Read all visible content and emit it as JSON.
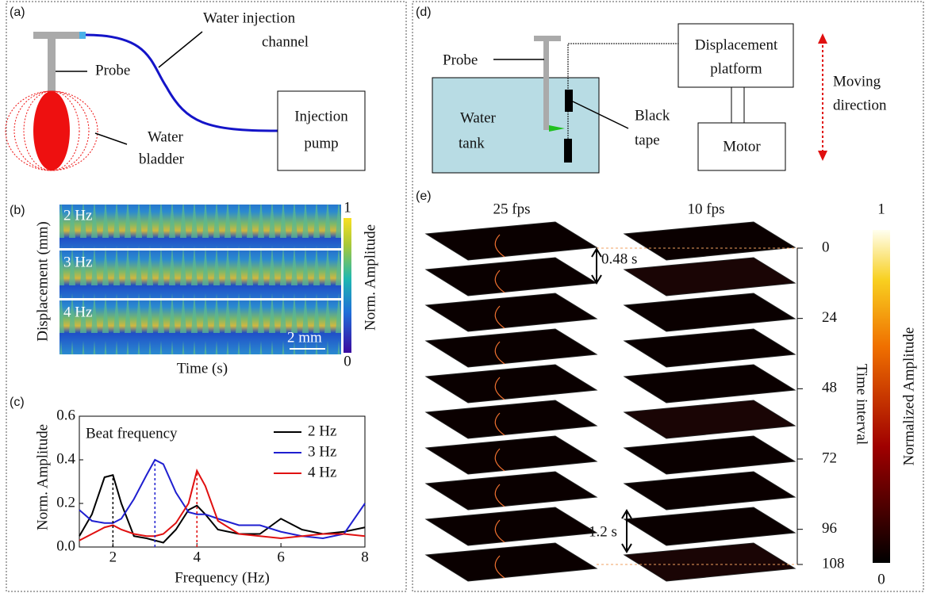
{
  "panel_a": {
    "label": "(a)",
    "channel_label": [
      "Water injection",
      "channel"
    ],
    "probe_label": "Probe",
    "bladder_label": [
      "Water",
      "bladder"
    ],
    "pump_label": [
      "Injection",
      "pump"
    ]
  },
  "panel_b": {
    "label": "(b)",
    "rows": [
      "2 Hz",
      "3 Hz",
      "4 Hz"
    ],
    "scale_bar": "2 mm",
    "ylabel": "Displacement (mm)",
    "xlabel": "Time (s)",
    "colorbar": {
      "label": "Norm. Amplitude",
      "lim": [
        0,
        1
      ],
      "ticks": [
        0,
        1
      ]
    }
  },
  "chart_data": {
    "type": "line",
    "panel_label": "(c)",
    "annotation": "Beat frequency",
    "xlabel": "Frequency (Hz)",
    "ylabel": "Norm. Amplitude",
    "x": [
      1.2,
      1.5,
      1.8,
      2.0,
      2.2,
      2.5,
      2.8,
      3.0,
      3.2,
      3.5,
      3.8,
      4.0,
      4.2,
      4.5,
      5.0,
      5.5,
      6.0,
      6.5,
      7.0,
      7.5,
      8.0
    ],
    "series": [
      {
        "name": "2 Hz",
        "color": "#000000",
        "values": [
          0.05,
          0.15,
          0.32,
          0.33,
          0.2,
          0.05,
          0.04,
          0.03,
          0.02,
          0.08,
          0.17,
          0.19,
          0.15,
          0.08,
          0.06,
          0.06,
          0.13,
          0.08,
          0.06,
          0.07,
          0.09
        ]
      },
      {
        "name": "3 Hz",
        "color": "#1f1fd0",
        "values": [
          0.17,
          0.12,
          0.11,
          0.11,
          0.13,
          0.22,
          0.33,
          0.4,
          0.38,
          0.25,
          0.16,
          0.15,
          0.15,
          0.13,
          0.1,
          0.1,
          0.07,
          0.05,
          0.04,
          0.06,
          0.2
        ]
      },
      {
        "name": "4 Hz",
        "color": "#e01010",
        "values": [
          0.03,
          0.06,
          0.09,
          0.1,
          0.08,
          0.06,
          0.05,
          0.05,
          0.06,
          0.11,
          0.2,
          0.35,
          0.28,
          0.12,
          0.06,
          0.05,
          0.04,
          0.05,
          0.06,
          0.06,
          0.05
        ]
      }
    ],
    "peak_lines": [
      {
        "x": 2,
        "y": 0.33,
        "color": "#000000"
      },
      {
        "x": 3,
        "y": 0.4,
        "color": "#1f1fd0"
      },
      {
        "x": 4,
        "y": 0.35,
        "color": "#e01010"
      }
    ],
    "xlim": [
      1.2,
      8
    ],
    "xticks": [
      2,
      4,
      6,
      8
    ],
    "ylim": [
      0,
      0.6
    ],
    "yticks": [
      {
        "value": 0,
        "label": "0.0"
      },
      0.2,
      0.4,
      0.6
    ],
    "legend": "top-right"
  },
  "panel_d": {
    "label": "(d)",
    "probe_label": "Probe",
    "platform_label": [
      "Displacement",
      "platform"
    ],
    "direction_label": [
      "Moving",
      "direction"
    ],
    "tank_label": [
      "Water",
      "tank"
    ],
    "tape_label": [
      "Black",
      "tape"
    ],
    "motor_label": "Motor"
  },
  "panel_e": {
    "label": "(e)",
    "left_title": "25 fps",
    "right_title": "10 fps",
    "interval_small": "0.48 s",
    "interval_large": "1.2 s",
    "time_axis": {
      "label": "Time interval",
      "lim": [
        0,
        108
      ],
      "ticks": [
        0,
        24,
        48,
        72,
        96,
        108
      ]
    },
    "colorbar": {
      "label": "Normalized Amplitude",
      "lim": [
        0,
        1
      ],
      "ticks": [
        0,
        1
      ]
    }
  }
}
